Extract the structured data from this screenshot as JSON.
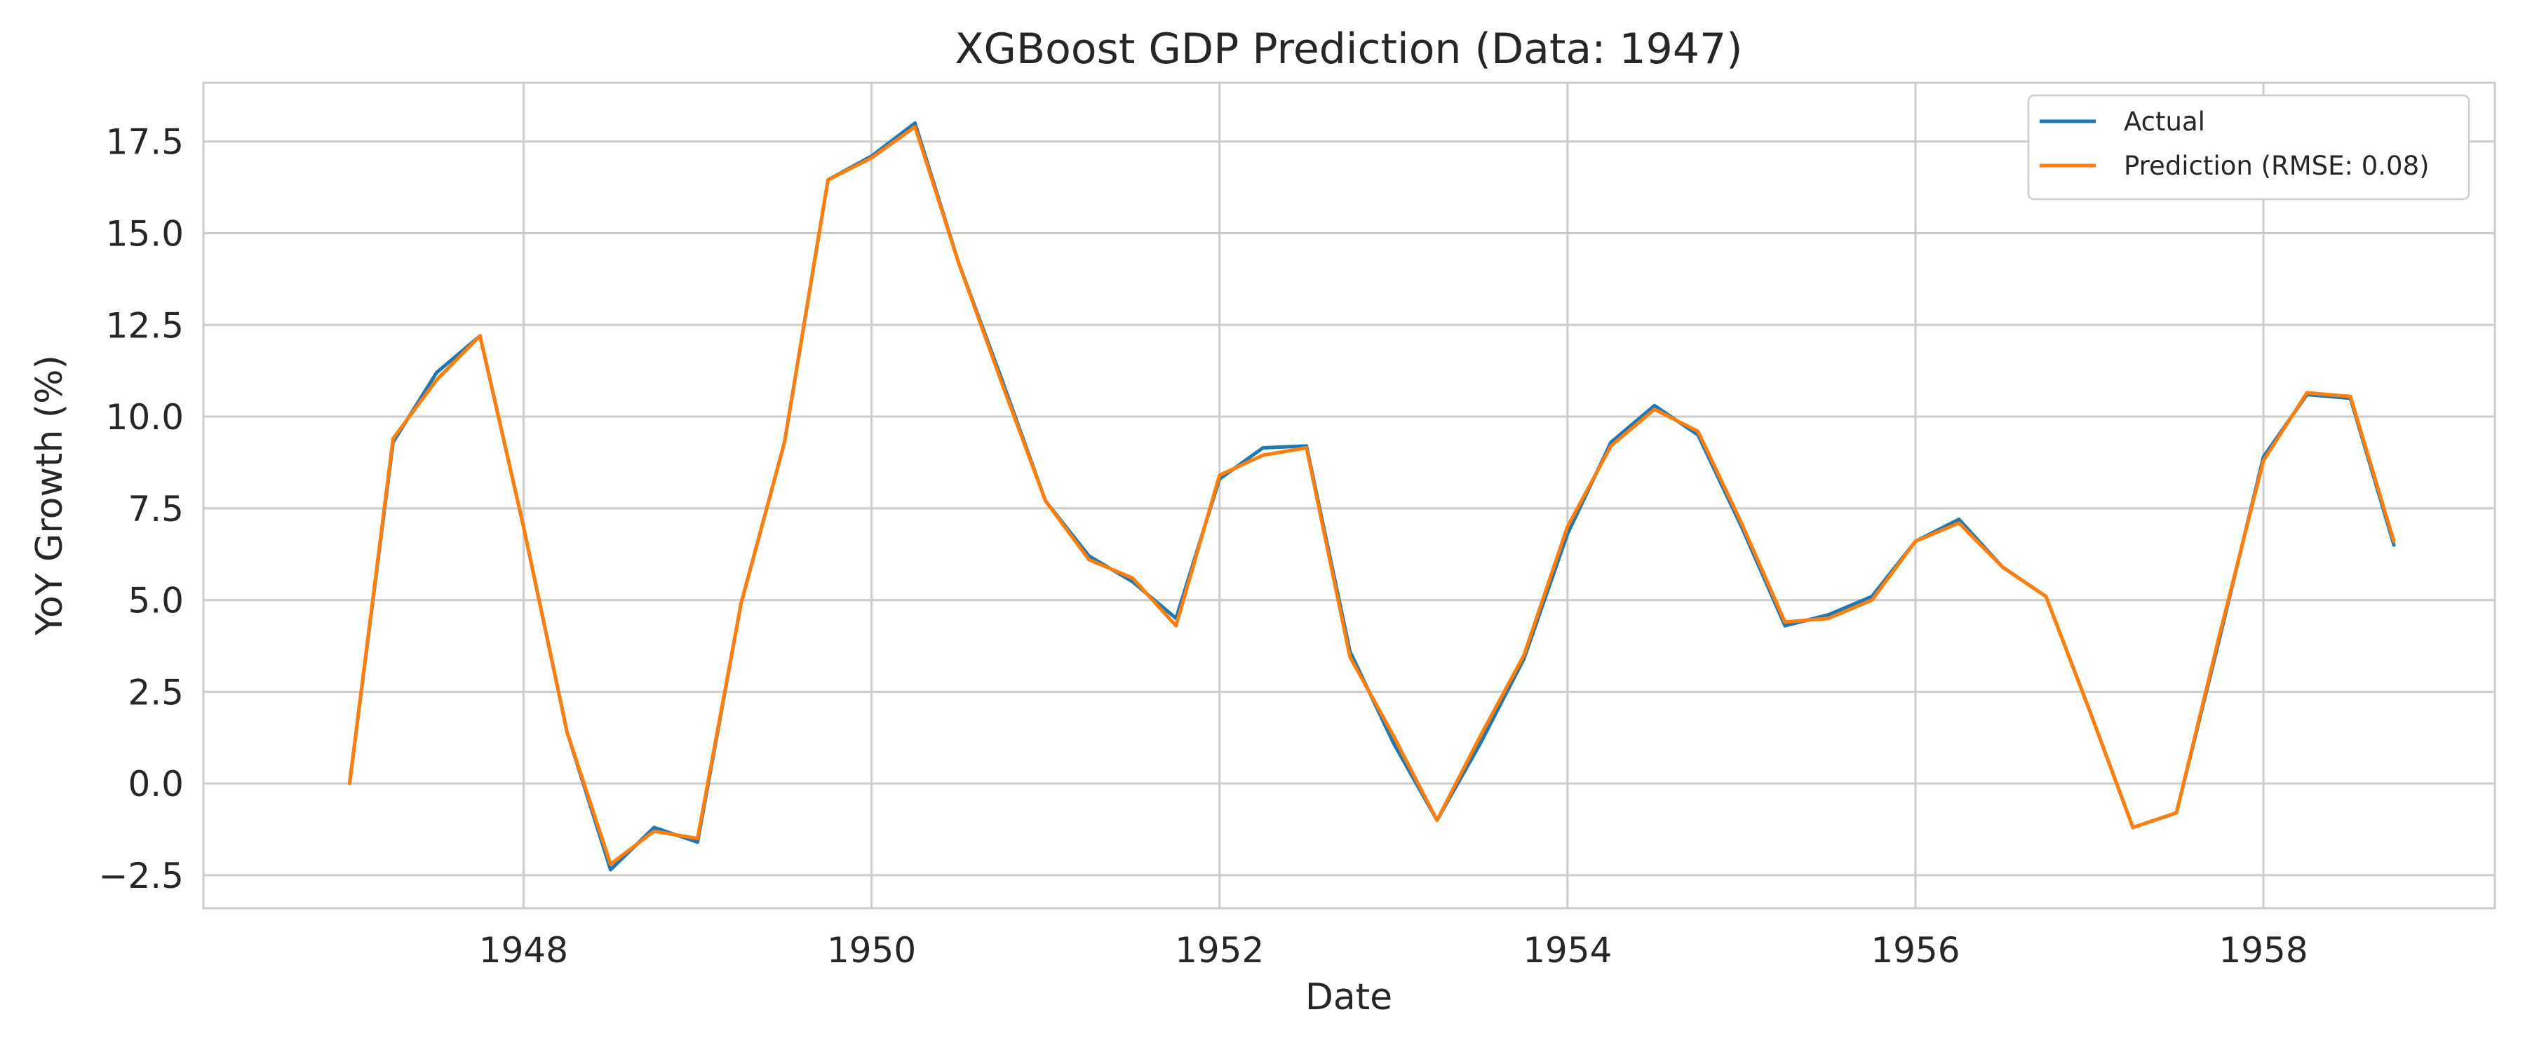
{
  "chart_data": {
    "type": "line",
    "title": "XGBoost GDP Prediction (Data: 1947)",
    "xlabel": "Date",
    "ylabel": "YoY Growth (%)",
    "xlim": [
      1946.16,
      1959.33
    ],
    "ylim": [
      -3.4,
      19.1
    ],
    "x_ticks": [
      1948,
      1950,
      1952,
      1954,
      1956,
      1958
    ],
    "y_ticks": [
      -2.5,
      0.0,
      2.5,
      5.0,
      7.5,
      10.0,
      12.5,
      15.0,
      17.5
    ],
    "y_tick_labels": [
      "−2.5",
      "0.0",
      "2.5",
      "5.0",
      "7.5",
      "10.0",
      "12.5",
      "15.0",
      "17.5"
    ],
    "grid": true,
    "legend_position": "top-right",
    "x": [
      1947.0,
      1947.25,
      1947.5,
      1947.75,
      1948.0,
      1948.25,
      1948.5,
      1948.75,
      1949.0,
      1949.25,
      1949.5,
      1949.75,
      1950.0,
      1950.25,
      1950.5,
      1950.75,
      1951.0,
      1951.25,
      1951.5,
      1951.75,
      1952.0,
      1952.25,
      1952.5,
      1952.75,
      1953.0,
      1953.25,
      1953.5,
      1953.75,
      1954.0,
      1954.25,
      1954.5,
      1954.75,
      1955.0,
      1955.25,
      1955.5,
      1955.75,
      1956.0,
      1956.25,
      1956.5,
      1956.75,
      1957.0,
      1957.25,
      1957.5,
      1957.75,
      1958.0,
      1958.25,
      1958.5,
      1958.75
    ],
    "series": [
      {
        "name": "Actual",
        "color": "#1f77b4",
        "values": [
          0.0,
          9.3,
          11.2,
          12.2,
          7.0,
          1.4,
          -2.35,
          -1.2,
          -1.6,
          4.9,
          9.3,
          16.45,
          17.1,
          18.0,
          14.2,
          11.0,
          7.7,
          6.2,
          5.5,
          4.5,
          8.3,
          9.15,
          9.2,
          3.6,
          1.1,
          -1.0,
          1.1,
          3.4,
          6.8,
          9.3,
          10.3,
          9.5,
          7.0,
          4.3,
          4.6,
          5.1,
          6.6,
          7.2,
          5.9,
          5.1,
          2.0,
          -1.2,
          -0.8,
          4.0,
          8.9,
          10.6,
          10.5,
          6.5
        ]
      },
      {
        "name": "Prediction (RMSE: 0.08)",
        "color": "#ff7f0e",
        "values": [
          0.0,
          9.4,
          11.0,
          12.2,
          7.0,
          1.4,
          -2.2,
          -1.3,
          -1.5,
          4.9,
          9.3,
          16.45,
          17.05,
          17.9,
          14.2,
          10.9,
          7.7,
          6.1,
          5.6,
          4.3,
          8.4,
          8.95,
          9.15,
          3.45,
          1.3,
          -1.0,
          1.3,
          3.5,
          7.0,
          9.2,
          10.2,
          9.6,
          7.1,
          4.4,
          4.5,
          5.0,
          6.6,
          7.1,
          5.9,
          5.1,
          2.0,
          -1.2,
          -0.8,
          4.1,
          8.8,
          10.65,
          10.55,
          6.6
        ]
      }
    ]
  }
}
